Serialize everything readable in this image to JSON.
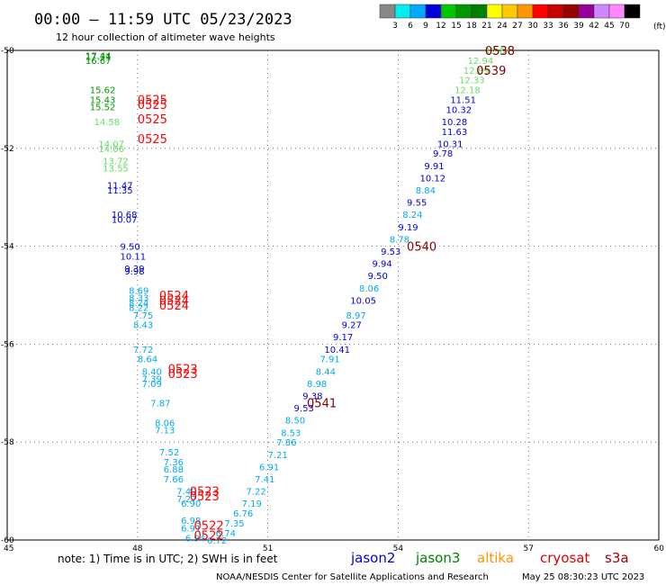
{
  "header": {
    "title": "00:00 – 11:59 UTC 05/23/2023",
    "subtitle": "12 hour collection of altimeter wave heights"
  },
  "footer": {
    "note": "note: 1) Time is in UTC; 2) SWH is in feet",
    "credit": "NOAA/NESDIS Center for Satellite Applications and Research",
    "timestamp": "May 25 08:30:23 UTC 2023"
  },
  "chart_data": {
    "type": "scatter",
    "xlim": [
      45,
      60
    ],
    "ylim": [
      -60,
      -50
    ],
    "x_ticks": [
      45,
      48,
      51,
      54,
      57,
      60
    ],
    "x_tick_labels": [
      "45",
      "48",
      "51",
      "54",
      "57",
      "60"
    ],
    "y_ticks": [
      -50,
      -52,
      -54,
      -56,
      -58,
      -60
    ],
    "y_tick_labels": [
      "-50",
      "-52",
      "-54",
      "-56",
      "-58",
      "-60"
    ],
    "grid": true,
    "color_scale": {
      "unit": "(ft)",
      "breaks": [
        "3",
        "6",
        "9",
        "12",
        "15",
        "18",
        "21",
        "24",
        "27",
        "30",
        "33",
        "36",
        "39",
        "42",
        "45",
        "70"
      ],
      "colors": [
        "#888888",
        "#00eeee",
        "#00aaff",
        "#0000dd",
        "#00c800",
        "#009600",
        "#008000",
        "#ffff00",
        "#ffc800",
        "#ff9600",
        "#ff0000",
        "#c80000",
        "#960000",
        "#990099",
        "#cc88ff",
        "#ff88ff",
        "#000000"
      ]
    },
    "satellites": [
      {
        "name": "jason2",
        "color": "#0000dd"
      },
      {
        "name": "jason3",
        "color": "#008000"
      },
      {
        "name": "altika",
        "color": "#ff9600"
      },
      {
        "name": "cryosat",
        "color": "#dd0000"
      },
      {
        "name": "s3a",
        "color": "#990000"
      }
    ],
    "time_labels": [
      {
        "text": "0538",
        "x": 56.0,
        "y": -50.0,
        "color": "#800000"
      },
      {
        "text": "0539",
        "x": 55.8,
        "y": -50.4,
        "color": "#800000"
      },
      {
        "text": "0540",
        "x": 54.2,
        "y": -54.0,
        "color": "#800000"
      },
      {
        "text": "0541",
        "x": 51.9,
        "y": -57.2,
        "color": "#800000"
      },
      {
        "text": "0525",
        "x": 48.0,
        "y": -51.0,
        "color": "#ff0000"
      },
      {
        "text": "0525",
        "x": 48.0,
        "y": -51.1,
        "color": "#ff0000"
      },
      {
        "text": "0525",
        "x": 48.0,
        "y": -51.4,
        "color": "#ff0000"
      },
      {
        "text": "0525",
        "x": 48.0,
        "y": -51.8,
        "color": "#ff0000"
      },
      {
        "text": "0524",
        "x": 48.5,
        "y": -55.0,
        "color": "#ff0000"
      },
      {
        "text": "0524",
        "x": 48.5,
        "y": -55.1,
        "color": "#ff0000"
      },
      {
        "text": "0524",
        "x": 48.5,
        "y": -55.2,
        "color": "#ff0000"
      },
      {
        "text": "0523",
        "x": 48.7,
        "y": -56.5,
        "color": "#ff0000"
      },
      {
        "text": "0523",
        "x": 48.7,
        "y": -56.6,
        "color": "#ff0000"
      },
      {
        "text": "0523",
        "x": 49.2,
        "y": -59.0,
        "color": "#ff0000"
      },
      {
        "text": "0523",
        "x": 49.2,
        "y": -59.1,
        "color": "#ff0000"
      },
      {
        "text": "0522",
        "x": 49.3,
        "y": -59.7,
        "color": "#ff0000"
      },
      {
        "text": "0522",
        "x": 49.3,
        "y": -59.9,
        "color": "#ff0000"
      }
    ],
    "points": [
      {
        "x": 46.8,
        "y": -50.1,
        "v": "17.44",
        "color": "#009600"
      },
      {
        "x": 46.8,
        "y": -50.12,
        "v": "17.31",
        "color": "#009600"
      },
      {
        "x": 46.8,
        "y": -50.2,
        "v": "16.67",
        "color": "#009600"
      },
      {
        "x": 46.9,
        "y": -50.8,
        "v": "15.62",
        "color": "#009600"
      },
      {
        "x": 46.9,
        "y": -51.0,
        "v": "15.43",
        "color": "#009600"
      },
      {
        "x": 46.9,
        "y": -51.15,
        "v": "15.52",
        "color": "#009600"
      },
      {
        "x": 47.0,
        "y": -51.45,
        "v": "14.58",
        "color": "#66dd66"
      },
      {
        "x": 47.1,
        "y": -51.9,
        "v": "14.07",
        "color": "#66dd66"
      },
      {
        "x": 47.1,
        "y": -52.0,
        "v": "14.06",
        "color": "#66dd66"
      },
      {
        "x": 47.2,
        "y": -52.25,
        "v": "13.72",
        "color": "#66dd66"
      },
      {
        "x": 47.2,
        "y": -52.4,
        "v": "13.55",
        "color": "#66dd66"
      },
      {
        "x": 47.3,
        "y": -52.75,
        "v": "11.47",
        "color": "#0000dd"
      },
      {
        "x": 47.3,
        "y": -52.85,
        "v": "11.35",
        "color": "#0000dd"
      },
      {
        "x": 47.4,
        "y": -53.35,
        "v": "10.68",
        "color": "#0000dd"
      },
      {
        "x": 47.4,
        "y": -53.45,
        "v": "10.07",
        "color": "#0000dd"
      },
      {
        "x": 47.6,
        "y": -54.0,
        "v": "9.50",
        "color": "#0000dd"
      },
      {
        "x": 47.6,
        "y": -54.2,
        "v": "10.11",
        "color": "#0000dd"
      },
      {
        "x": 47.7,
        "y": -54.45,
        "v": "9.39",
        "color": "#0000dd"
      },
      {
        "x": 47.7,
        "y": -54.5,
        "v": "9.98",
        "color": "#0000dd"
      },
      {
        "x": 47.8,
        "y": -54.9,
        "v": "8.69",
        "color": "#00aaee"
      },
      {
        "x": 47.8,
        "y": -55.05,
        "v": "8.33",
        "color": "#00aaee"
      },
      {
        "x": 47.8,
        "y": -55.15,
        "v": "8.24",
        "color": "#00aaee"
      },
      {
        "x": 47.8,
        "y": -55.25,
        "v": "8.22",
        "color": "#00aaee"
      },
      {
        "x": 47.9,
        "y": -55.4,
        "v": "7.75",
        "color": "#00aaee"
      },
      {
        "x": 47.9,
        "y": -55.6,
        "v": "8.43",
        "color": "#00aaee"
      },
      {
        "x": 47.9,
        "y": -56.1,
        "v": "7.72",
        "color": "#00aaee"
      },
      {
        "x": 48.0,
        "y": -56.3,
        "v": "8.64",
        "color": "#00aaee"
      },
      {
        "x": 48.1,
        "y": -56.55,
        "v": "8.40",
        "color": "#00aaee"
      },
      {
        "x": 48.1,
        "y": -56.7,
        "v": "7.39",
        "color": "#00aaee"
      },
      {
        "x": 48.1,
        "y": -56.8,
        "v": "7.09",
        "color": "#00aaee"
      },
      {
        "x": 48.3,
        "y": -57.2,
        "v": "7.87",
        "color": "#00aaee"
      },
      {
        "x": 48.4,
        "y": -57.6,
        "v": "8.06",
        "color": "#00aaee"
      },
      {
        "x": 48.4,
        "y": -57.75,
        "v": "7.13",
        "color": "#00aaee"
      },
      {
        "x": 48.5,
        "y": -58.2,
        "v": "7.52",
        "color": "#00aaee"
      },
      {
        "x": 48.6,
        "y": -58.4,
        "v": "7.36",
        "color": "#00aaee"
      },
      {
        "x": 48.6,
        "y": -58.55,
        "v": "6.88",
        "color": "#00aaee"
      },
      {
        "x": 48.6,
        "y": -58.75,
        "v": "7.66",
        "color": "#00aaee"
      },
      {
        "x": 48.9,
        "y": -59.0,
        "v": "7.49",
        "color": "#00aaee"
      },
      {
        "x": 48.9,
        "y": -59.15,
        "v": "7.27",
        "color": "#00aaee"
      },
      {
        "x": 49.0,
        "y": -59.25,
        "v": "6.90",
        "color": "#00aaee"
      },
      {
        "x": 49.0,
        "y": -59.6,
        "v": "6.98",
        "color": "#00aaee"
      },
      {
        "x": 49.0,
        "y": -59.75,
        "v": "6.91",
        "color": "#00aaee"
      },
      {
        "x": 49.1,
        "y": -59.95,
        "v": "6.94",
        "color": "#00aaee"
      },
      {
        "x": 56.0,
        "y": -50.0,
        "v": "12.84",
        "color": "#66dd66"
      },
      {
        "x": 55.6,
        "y": -50.2,
        "v": "12.94",
        "color": "#66dd66"
      },
      {
        "x": 55.5,
        "y": -50.4,
        "v": "12.89",
        "color": "#66dd66"
      },
      {
        "x": 55.4,
        "y": -50.6,
        "v": "12.33",
        "color": "#66dd66"
      },
      {
        "x": 55.3,
        "y": -50.8,
        "v": "12.18",
        "color": "#66dd66"
      },
      {
        "x": 55.2,
        "y": -51.0,
        "v": "11.51",
        "color": "#0000dd"
      },
      {
        "x": 55.1,
        "y": -51.2,
        "v": "10.32",
        "color": "#0000dd"
      },
      {
        "x": 55.0,
        "y": -51.45,
        "v": "10.28",
        "color": "#0000dd"
      },
      {
        "x": 55.0,
        "y": -51.65,
        "v": "11.63",
        "color": "#0000dd"
      },
      {
        "x": 54.9,
        "y": -51.9,
        "v": "10.31",
        "color": "#0000dd"
      },
      {
        "x": 54.8,
        "y": -52.1,
        "v": "9.78",
        "color": "#0000dd"
      },
      {
        "x": 54.6,
        "y": -52.35,
        "v": "9.91",
        "color": "#0000dd"
      },
      {
        "x": 54.5,
        "y": -52.6,
        "v": "10.12",
        "color": "#0000dd"
      },
      {
        "x": 54.4,
        "y": -52.85,
        "v": "8.84",
        "color": "#00aaee"
      },
      {
        "x": 54.2,
        "y": -53.1,
        "v": "9.55",
        "color": "#0000dd"
      },
      {
        "x": 54.1,
        "y": -53.35,
        "v": "8.24",
        "color": "#00aaee"
      },
      {
        "x": 54.0,
        "y": -53.6,
        "v": "9.19",
        "color": "#0000dd"
      },
      {
        "x": 53.8,
        "y": -53.85,
        "v": "8.78",
        "color": "#00aaee"
      },
      {
        "x": 53.6,
        "y": -54.1,
        "v": "9.53",
        "color": "#0000dd"
      },
      {
        "x": 53.4,
        "y": -54.35,
        "v": "9.94",
        "color": "#0000dd"
      },
      {
        "x": 53.3,
        "y": -54.6,
        "v": "9.50",
        "color": "#0000dd"
      },
      {
        "x": 53.1,
        "y": -54.85,
        "v": "8.06",
        "color": "#00aaee"
      },
      {
        "x": 52.9,
        "y": -55.1,
        "v": "10.05",
        "color": "#0000dd"
      },
      {
        "x": 52.8,
        "y": -55.4,
        "v": "8.97",
        "color": "#00aaee"
      },
      {
        "x": 52.7,
        "y": -55.6,
        "v": "9.27",
        "color": "#0000dd"
      },
      {
        "x": 52.5,
        "y": -55.85,
        "v": "9.17",
        "color": "#0000dd"
      },
      {
        "x": 52.3,
        "y": -56.1,
        "v": "10.41",
        "color": "#0000dd"
      },
      {
        "x": 52.2,
        "y": -56.3,
        "v": "7.91",
        "color": "#00aaee"
      },
      {
        "x": 52.1,
        "y": -56.55,
        "v": "8.44",
        "color": "#00aaee"
      },
      {
        "x": 51.9,
        "y": -56.8,
        "v": "8.98",
        "color": "#00aaee"
      },
      {
        "x": 51.8,
        "y": -57.05,
        "v": "9.38",
        "color": "#0000dd"
      },
      {
        "x": 51.6,
        "y": -57.3,
        "v": "9.53",
        "color": "#0000dd"
      },
      {
        "x": 51.4,
        "y": -57.55,
        "v": "8.50",
        "color": "#00aaee"
      },
      {
        "x": 51.3,
        "y": -57.8,
        "v": "8.53",
        "color": "#00aaee"
      },
      {
        "x": 51.2,
        "y": -58.0,
        "v": "7.86",
        "color": "#00aaee"
      },
      {
        "x": 51.0,
        "y": -58.25,
        "v": "7.21",
        "color": "#00aaee"
      },
      {
        "x": 50.8,
        "y": -58.5,
        "v": "6.91",
        "color": "#00aaee"
      },
      {
        "x": 50.7,
        "y": -58.75,
        "v": "7.41",
        "color": "#00aaee"
      },
      {
        "x": 50.5,
        "y": -59.0,
        "v": "7.22",
        "color": "#00aaee"
      },
      {
        "x": 50.4,
        "y": -59.25,
        "v": "7.19",
        "color": "#00aaee"
      },
      {
        "x": 50.2,
        "y": -59.45,
        "v": "6.76",
        "color": "#00aaee"
      },
      {
        "x": 50.0,
        "y": -59.65,
        "v": "7.35",
        "color": "#00aaee"
      },
      {
        "x": 49.8,
        "y": -59.85,
        "v": "6.74",
        "color": "#00aaee"
      },
      {
        "x": 49.6,
        "y": -60.0,
        "v": "6.72",
        "color": "#00aaee"
      }
    ]
  }
}
